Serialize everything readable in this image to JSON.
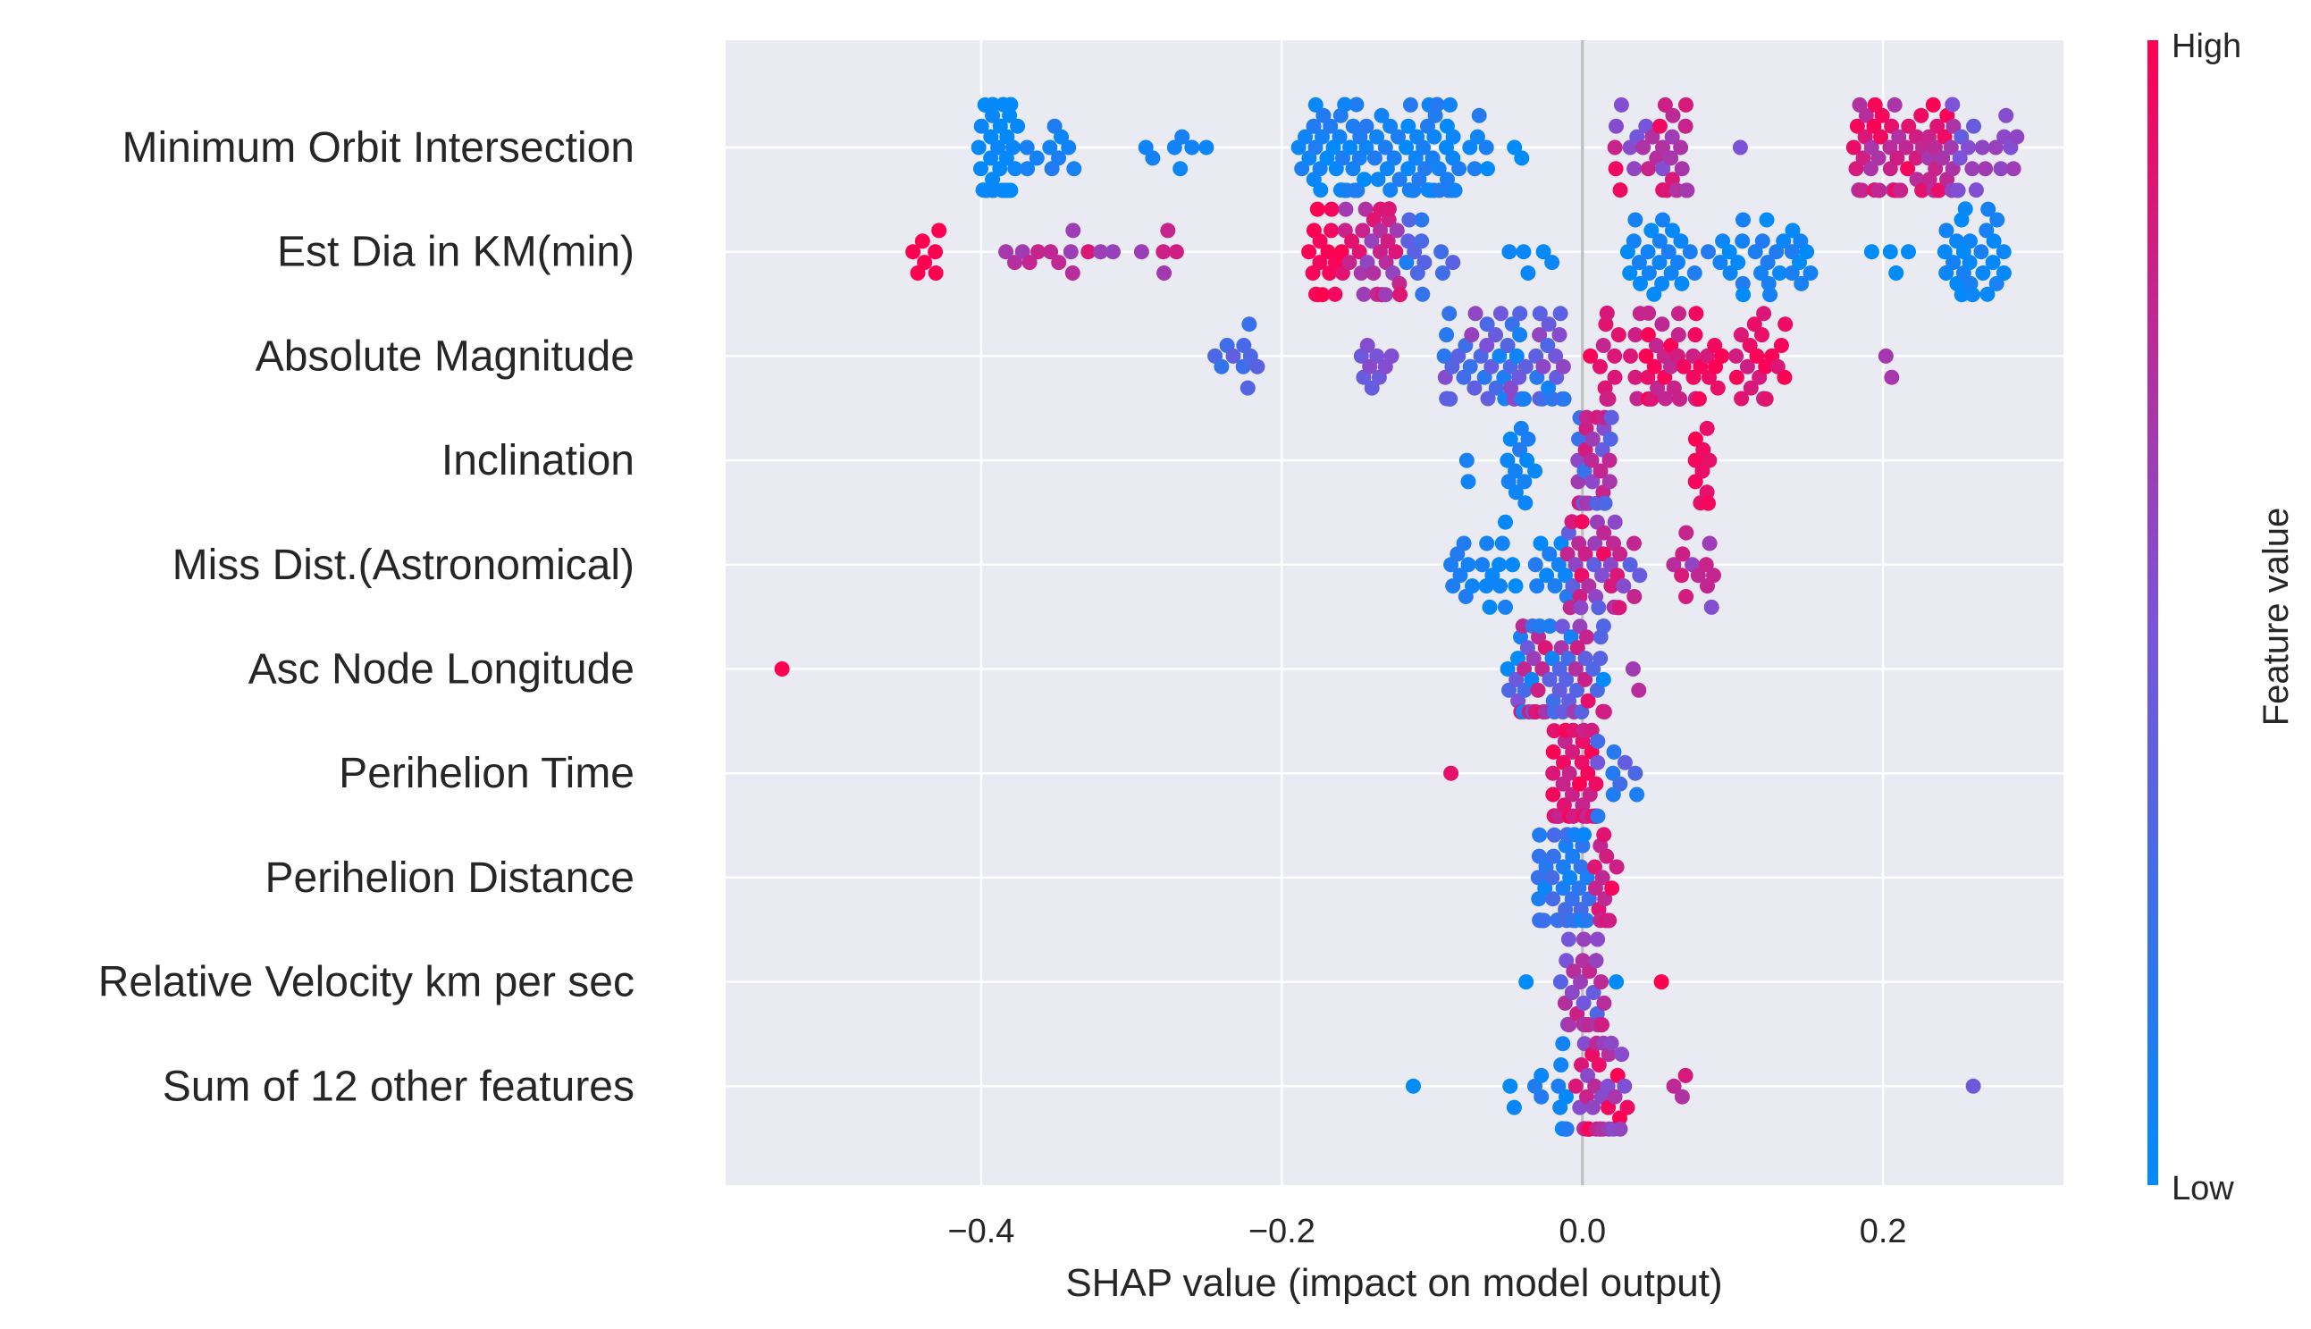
{
  "chart_data": {
    "type": "scatter",
    "subtype": "shap-beeswarm",
    "title": "",
    "xlabel": "SHAP value (impact on model output)",
    "xlim": [
      -0.57,
      0.32
    ],
    "xticks": [
      -0.4,
      -0.2,
      0.0,
      0.2
    ],
    "xtick_labels": [
      "−0.4",
      "−0.2",
      "0.0",
      "0.2"
    ],
    "grid": true,
    "colorbar": {
      "label": "Feature value",
      "high_label": "High",
      "low_label": "Low",
      "low_color": "#008bfb",
      "mid_color": "#7c52d8",
      "high_color": "#ff0051"
    },
    "features": [
      {
        "name": "Minimum Orbit Intersection",
        "clusters": [
          {
            "x": [
              -0.405,
              -0.375
            ],
            "n": 34,
            "fv": [
              0.0,
              0.05
            ]
          },
          {
            "x": [
              -0.37,
              -0.335
            ],
            "n": 10,
            "fv": [
              0.0,
              0.15
            ]
          },
          {
            "x": [
              -0.3,
              -0.25
            ],
            "n": 7,
            "fv": [
              0.0,
              0.1
            ]
          },
          {
            "x": [
              -0.19,
              -0.06
            ],
            "n": 90,
            "fv": [
              0.0,
              0.15
            ]
          },
          {
            "x": [
              -0.05,
              -0.035
            ],
            "n": 2,
            "fv": [
              0.0,
              0.0
            ]
          },
          {
            "x": [
              0.02,
              0.07
            ],
            "n": 30,
            "fv": [
              0.45,
              0.95
            ]
          },
          {
            "x": [
              0.1,
              0.11
            ],
            "n": 1,
            "fv": [
              0.5,
              0.5
            ]
          },
          {
            "x": [
              0.18,
              0.245
            ],
            "n": 60,
            "fv": [
              0.65,
              1.0
            ]
          },
          {
            "x": [
              0.245,
              0.29
            ],
            "n": 22,
            "fv": [
              0.4,
              0.7
            ]
          }
        ]
      },
      {
        "name": "Est Dia in KM(min)",
        "clusters": [
          {
            "x": [
              -0.45,
              -0.425
            ],
            "n": 7,
            "fv": [
              1.0,
              1.0
            ]
          },
          {
            "x": [
              -0.385,
              -0.33
            ],
            "n": 10,
            "fv": [
              0.6,
              0.8
            ]
          },
          {
            "x": [
              -0.33,
              -0.27
            ],
            "n": 8,
            "fv": [
              0.55,
              0.9
            ]
          },
          {
            "x": [
              -0.185,
              -0.16
            ],
            "n": 16,
            "fv": [
              0.95,
              1.0
            ]
          },
          {
            "x": [
              -0.16,
              -0.12
            ],
            "n": 30,
            "fv": [
              0.55,
              0.9
            ]
          },
          {
            "x": [
              -0.12,
              -0.085
            ],
            "n": 12,
            "fv": [
              0.1,
              0.4
            ]
          },
          {
            "x": [
              -0.05,
              0.0
            ],
            "n": 5,
            "fv": [
              0.0,
              0.05
            ]
          },
          {
            "x": [
              0.03,
              0.16
            ],
            "n": 50,
            "fv": [
              0.0,
              0.15
            ]
          },
          {
            "x": [
              0.18,
              0.23
            ],
            "n": 4,
            "fv": [
              0.0,
              0.0
            ]
          },
          {
            "x": [
              0.24,
              0.285
            ],
            "n": 26,
            "fv": [
              0.0,
              0.1
            ]
          }
        ]
      },
      {
        "name": "Absolute Magnitude",
        "clusters": [
          {
            "x": [
              -0.245,
              -0.215
            ],
            "n": 10,
            "fv": [
              0.2,
              0.4
            ]
          },
          {
            "x": [
              -0.15,
              -0.125
            ],
            "n": 9,
            "fv": [
              0.4,
              0.6
            ]
          },
          {
            "x": [
              -0.095,
              -0.01
            ],
            "n": 60,
            "fv": [
              0.05,
              0.6
            ]
          },
          {
            "x": [
              0.005,
              0.14
            ],
            "n": 75,
            "fv": [
              0.75,
              1.0
            ]
          },
          {
            "x": [
              0.175,
              0.215
            ],
            "n": 2,
            "fv": [
              0.65,
              0.75
            ]
          }
        ]
      },
      {
        "name": "Inclination",
        "clusters": [
          {
            "x": [
              -0.08,
              -0.075
            ],
            "n": 2,
            "fv": [
              0.0,
              0.1
            ]
          },
          {
            "x": [
              -0.05,
              -0.03
            ],
            "n": 12,
            "fv": [
              0.0,
              0.15
            ]
          },
          {
            "x": [
              -0.003,
              0.02
            ],
            "n": 30,
            "fv": [
              0.2,
              0.9
            ]
          },
          {
            "x": [
              0.075,
              0.085
            ],
            "n": 10,
            "fv": [
              0.9,
              1.0
            ]
          }
        ]
      },
      {
        "name": "Miss Dist.(Astronomical)",
        "clusters": [
          {
            "x": [
              -0.09,
              -0.01
            ],
            "n": 30,
            "fv": [
              0.0,
              0.15
            ]
          },
          {
            "x": [
              -0.01,
              0.04
            ],
            "n": 35,
            "fv": [
              0.3,
              0.95
            ]
          },
          {
            "x": [
              0.06,
              0.09
            ],
            "n": 12,
            "fv": [
              0.5,
              0.85
            ]
          }
        ]
      },
      {
        "name": "Asc Node Longitude",
        "clusters": [
          {
            "x": [
              -0.535,
              -0.53
            ],
            "n": 1,
            "fv": [
              1.0,
              1.0
            ]
          },
          {
            "x": [
              -0.05,
              0.015
            ],
            "n": 60,
            "fv": [
              0.0,
              1.0
            ]
          },
          {
            "x": [
              0.03,
              0.04
            ],
            "n": 2,
            "fv": [
              0.6,
              0.9
            ]
          }
        ]
      },
      {
        "name": "Perihelion Time",
        "clusters": [
          {
            "x": [
              -0.09,
              -0.085
            ],
            "n": 1,
            "fv": [
              0.9,
              0.9
            ]
          },
          {
            "x": [
              -0.02,
              0.01
            ],
            "n": 55,
            "fv": [
              0.75,
              1.0
            ]
          },
          {
            "x": [
              0.01,
              0.04
            ],
            "n": 10,
            "fv": [
              0.1,
              0.5
            ]
          }
        ]
      },
      {
        "name": "Perihelion Distance",
        "clusters": [
          {
            "x": [
              -0.03,
              0.005
            ],
            "n": 40,
            "fv": [
              0.0,
              0.3
            ]
          },
          {
            "x": [
              0.005,
              0.025
            ],
            "n": 14,
            "fv": [
              0.75,
              1.0
            ]
          }
        ]
      },
      {
        "name": "Relative Velocity km per sec",
        "clusters": [
          {
            "x": [
              -0.04,
              -0.035
            ],
            "n": 1,
            "fv": [
              0.0,
              0.0
            ]
          },
          {
            "x": [
              -0.015,
              0.015
            ],
            "n": 30,
            "fv": [
              0.3,
              0.85
            ]
          },
          {
            "x": [
              0.02,
              0.025
            ],
            "n": 1,
            "fv": [
              0.0,
              0.0
            ]
          },
          {
            "x": [
              0.05,
              0.055
            ],
            "n": 1,
            "fv": [
              1.0,
              1.0
            ]
          }
        ]
      },
      {
        "name": "Sum of 12 other features",
        "clusters": [
          {
            "x": [
              -0.115,
              -0.11
            ],
            "n": 1,
            "fv": [
              0.0,
              0.0
            ]
          },
          {
            "x": [
              -0.05,
              -0.005
            ],
            "n": 14,
            "fv": [
              0.0,
              0.15
            ]
          },
          {
            "x": [
              -0.005,
              0.03
            ],
            "n": 35,
            "fv": [
              0.5,
              1.0
            ]
          },
          {
            "x": [
              0.045,
              0.08
            ],
            "n": 3,
            "fv": [
              0.65,
              0.95
            ]
          },
          {
            "x": [
              0.255,
              0.265
            ],
            "n": 1,
            "fv": [
              0.45,
              0.45
            ]
          }
        ]
      }
    ]
  }
}
